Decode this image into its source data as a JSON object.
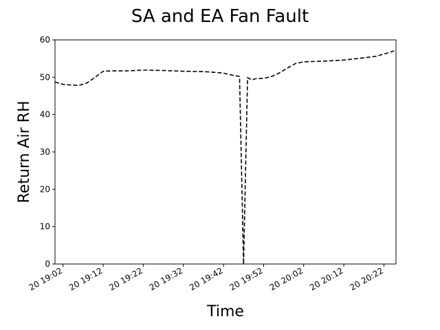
{
  "chart_data": {
    "type": "line",
    "title": "SA and EA Fan Fault",
    "xlabel": "Time",
    "ylabel": "Return Air RH",
    "ylim": [
      0,
      60
    ],
    "y_ticks": [
      0,
      10,
      20,
      30,
      40,
      50,
      60
    ],
    "xlim": [
      "20 19:00",
      "20 20:25"
    ],
    "x_ticks": [
      {
        "label": "20 19:02",
        "value": "20 19:02"
      },
      {
        "label": "20 19:12",
        "value": "20 19:12"
      },
      {
        "label": "20 19:22",
        "value": "20 19:22"
      },
      {
        "label": "20 19:32",
        "value": "20 19:32"
      },
      {
        "label": "20 19:42",
        "value": "20 19:42"
      },
      {
        "label": "20 19:52",
        "value": "20 19:52"
      },
      {
        "label": "20 20:02",
        "value": "20 20:02"
      },
      {
        "label": "20 20:12",
        "value": "20 20:12"
      },
      {
        "label": "20 20:22",
        "value": "20 20:22"
      }
    ],
    "grid": false,
    "series": [
      {
        "color": "#000000",
        "line_style": "dashed",
        "x": [
          "20 19:00",
          "20 19:02",
          "20 19:04",
          "20 19:06",
          "20 19:08",
          "20 19:10",
          "20 19:12",
          "20 19:14",
          "20 19:16",
          "20 19:18",
          "20 19:22",
          "20 19:27",
          "20 19:32",
          "20 19:37",
          "20 19:40",
          "20 19:42",
          "20 19:44",
          "20 19:46",
          "20 19:47",
          "20 19:48",
          "20 19:49",
          "20 19:50",
          "20 19:52",
          "20 19:54",
          "20 19:56",
          "20 19:58",
          "20 20:00",
          "20 20:02",
          "20 20:04",
          "20 20:07",
          "20 20:12",
          "20 20:17",
          "20 20:20",
          "20 20:22",
          "20 20:25"
        ],
        "values": [
          48.7,
          48.1,
          47.9,
          47.8,
          48.5,
          50.0,
          51.6,
          51.7,
          51.7,
          51.7,
          51.9,
          51.8,
          51.6,
          51.5,
          51.3,
          51.1,
          50.6,
          50.2,
          0,
          49.9,
          49.3,
          49.6,
          49.7,
          50.2,
          51.2,
          52.5,
          53.7,
          54.1,
          54.2,
          54.3,
          54.6,
          55.2,
          55.6,
          56.2,
          57.2
        ]
      }
    ]
  }
}
